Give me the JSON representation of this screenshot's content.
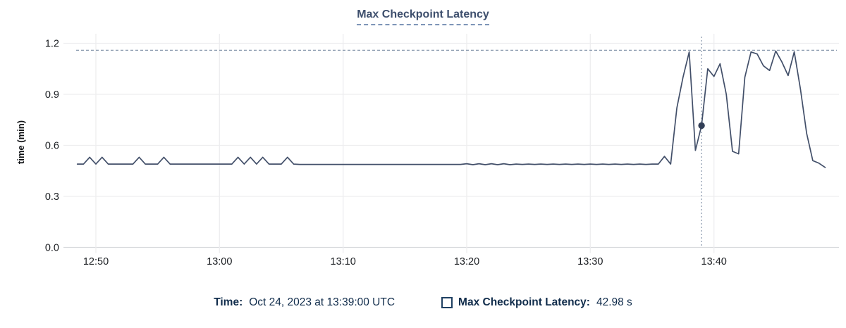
{
  "title": "Max Checkpoint Latency",
  "legend": {
    "time_label": "Time:",
    "time_value": "Oct 24, 2023 at 13:39:00 UTC",
    "series_label": "Max Checkpoint Latency:",
    "series_value": "42.98 s"
  },
  "colors": {
    "title_text": "#3e4f6d",
    "title_underline": "#7e95b8",
    "series_line": "#424f69",
    "selected_dot": "#323f57",
    "legend_text": "#102c4b",
    "legend_square_border": "#1f4062",
    "grid_line": "#ededef",
    "axis_line": "#d8dadd",
    "axis_tick_text": "#1b1e22",
    "dashed_guide": "#8595aa"
  },
  "chart_data": {
    "type": "line",
    "title": "Max Checkpoint Latency",
    "xlabel": "",
    "ylabel": "time (min)",
    "ylim": [
      0,
      1.26
    ],
    "xlim": [
      "12:48:00",
      "13:50:00"
    ],
    "y_ticks": [
      0.0,
      0.3,
      0.6,
      0.9,
      1.2
    ],
    "x_ticks": [
      "12:50",
      "13:00",
      "13:10",
      "13:20",
      "13:30",
      "13:40"
    ],
    "grid": true,
    "legend_position": "bottom",
    "max_guide_value": 1.159,
    "selected_point": {
      "time": "13:39:00",
      "value_min": 0.7163,
      "display": "42.98 s"
    },
    "series": [
      {
        "name": "Max Checkpoint Latency",
        "unit": "min",
        "start": "12:48:30",
        "step_seconds": 30,
        "values": [
          0.49,
          0.49,
          0.53,
          0.49,
          0.53,
          0.49,
          0.49,
          0.49,
          0.49,
          0.49,
          0.53,
          0.49,
          0.49,
          0.49,
          0.53,
          0.49,
          0.49,
          0.49,
          0.49,
          0.49,
          0.49,
          0.49,
          0.49,
          0.49,
          0.49,
          0.49,
          0.53,
          0.49,
          0.53,
          0.49,
          0.53,
          0.49,
          0.49,
          0.49,
          0.53,
          0.49,
          0.488,
          0.488,
          0.488,
          0.488,
          0.488,
          0.488,
          0.488,
          0.488,
          0.488,
          0.488,
          0.488,
          0.488,
          0.488,
          0.488,
          0.488,
          0.488,
          0.488,
          0.488,
          0.488,
          0.488,
          0.488,
          0.488,
          0.488,
          0.488,
          0.488,
          0.488,
          0.488,
          0.492,
          0.486,
          0.492,
          0.486,
          0.492,
          0.486,
          0.492,
          0.486,
          0.49,
          0.488,
          0.49,
          0.488,
          0.49,
          0.488,
          0.49,
          0.488,
          0.49,
          0.488,
          0.49,
          0.488,
          0.49,
          0.488,
          0.49,
          0.488,
          0.49,
          0.488,
          0.49,
          0.488,
          0.49,
          0.488,
          0.49,
          0.49,
          0.535,
          0.49,
          0.82,
          1.0,
          1.149,
          0.57,
          0.7163,
          1.05,
          1.005,
          1.08,
          0.9,
          0.565,
          0.55,
          1.0,
          1.149,
          1.137,
          1.068,
          1.04,
          1.155,
          1.09,
          1.01,
          1.15,
          0.93,
          0.67,
          0.51,
          0.495,
          0.47
        ]
      }
    ]
  }
}
